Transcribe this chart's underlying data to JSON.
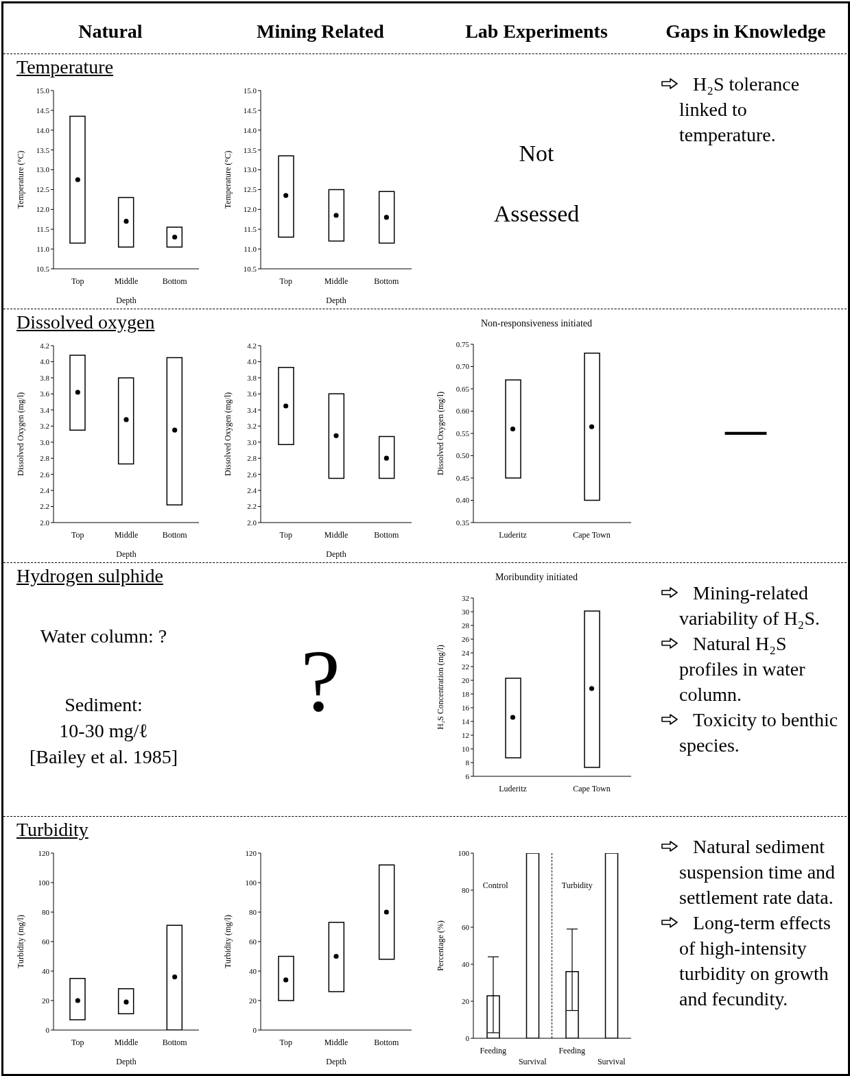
{
  "chart_data": [
    {
      "type": "other",
      "annotations": [
        "Natural",
        "Mining Related",
        "Lab Experiments",
        "Gaps in Knowledge"
      ]
    },
    {
      "type": "bar",
      "title": "Temperature",
      "categories": [
        "Top",
        "Middle",
        "Bottom"
      ],
      "xlabel": "Depth",
      "ylabel": "Temperature (°C)",
      "ylim": [
        10.5,
        15
      ],
      "yticks": [
        10.5,
        {
          "value": 11,
          "label": "11.0"
        },
        11.5,
        {
          "value": 12,
          "label": "12.0"
        },
        12.5,
        {
          "value": 13,
          "label": "13.0"
        },
        13.5,
        {
          "value": 14,
          "label": "14.0"
        },
        14.5,
        {
          "value": 15,
          "label": "15.0"
        }
      ],
      "marker": "circle",
      "series": [
        {
          "type": "bar",
          "color": "#000000",
          "base": [
            11.15,
            11.05,
            11.05
          ],
          "values": [
            3.2,
            1.25,
            0.5
          ]
        },
        {
          "type": "scatter",
          "color": "#000000",
          "x": [
            "Top",
            "Middle",
            "Bottom"
          ],
          "values": [
            12.75,
            11.7,
            11.3
          ]
        }
      ]
    },
    {
      "type": "bar",
      "categories": [
        "Top",
        "Middle",
        "Bottom"
      ],
      "xlabel": "Depth",
      "ylabel": "Temperature (°C)",
      "ylim": [
        10.5,
        15
      ],
      "yticks": [
        10.5,
        {
          "value": 11,
          "label": "11.0"
        },
        11.5,
        {
          "value": 12,
          "label": "12.0"
        },
        12.5,
        {
          "value": 13,
          "label": "13.0"
        },
        13.5,
        {
          "value": 14,
          "label": "14.0"
        },
        14.5,
        {
          "value": 15,
          "label": "15.0"
        }
      ],
      "marker": "circle",
      "series": [
        {
          "type": "bar",
          "color": "#000000",
          "base": [
            11.3,
            11.2,
            11.15
          ],
          "values": [
            2.05,
            1.3,
            1.3
          ]
        },
        {
          "type": "scatter",
          "color": "#000000",
          "x": [
            "Top",
            "Middle",
            "Bottom"
          ],
          "values": [
            12.35,
            11.85,
            11.8
          ]
        }
      ]
    },
    {
      "type": "other",
      "annotations": [
        "Not Assessed"
      ]
    },
    {
      "type": "other",
      "annotations": [
        "H₂S tolerance linked to temperature."
      ]
    },
    {
      "type": "bar",
      "title": "Dissolved oxygen",
      "categories": [
        "Top",
        "Middle",
        "Bottom"
      ],
      "xlabel": "Depth",
      "ylabel": "Dissolved Oxygen (mg/l)",
      "ylim": [
        2,
        4.2
      ],
      "yticks": [
        {
          "value": 2,
          "label": "2.0"
        },
        2.2,
        2.4,
        2.6,
        2.8,
        {
          "value": 3,
          "label": "3.0"
        },
        3.2,
        3.4,
        3.6,
        3.8,
        {
          "value": 4,
          "label": "4.0"
        },
        4.2
      ],
      "marker": "circle",
      "series": [
        {
          "type": "bar",
          "color": "#000000",
          "base": [
            3.15,
            2.73,
            2.22
          ],
          "values": [
            0.93,
            1.07,
            1.83
          ]
        },
        {
          "type": "scatter",
          "color": "#000000",
          "x": [
            "Top",
            "Middle",
            "Bottom"
          ],
          "values": [
            3.62,
            3.28,
            3.15
          ]
        }
      ]
    },
    {
      "type": "bar",
      "categories": [
        "Top",
        "Middle",
        "Bottom"
      ],
      "xlabel": "Depth",
      "ylabel": "Dissolved Oxygen (mg/l)",
      "ylim": [
        2,
        4.2
      ],
      "yticks": [
        {
          "value": 2,
          "label": "2.0"
        },
        2.2,
        2.4,
        2.6,
        2.8,
        {
          "value": 3,
          "label": "3.0"
        },
        3.2,
        3.4,
        3.6,
        3.8,
        {
          "value": 4,
          "label": "4.0"
        },
        4.2
      ],
      "marker": "circle",
      "series": [
        {
          "type": "bar",
          "color": "#000000",
          "base": [
            2.97,
            2.55,
            2.55
          ],
          "values": [
            0.96,
            1.05,
            0.52
          ]
        },
        {
          "type": "scatter",
          "color": "#000000",
          "x": [
            "Top",
            "Middle",
            "Bottom"
          ],
          "values": [
            3.45,
            3.08,
            2.8
          ]
        }
      ]
    },
    {
      "type": "bar",
      "title": "Non-responsiveness initiated",
      "categories": [
        "Luderitz",
        "Cape Town"
      ],
      "ylabel": "Dissolved Oxygen (mg/l)",
      "ylim": [
        0.35,
        0.75
      ],
      "yticks": [
        0.35,
        {
          "value": 0.4,
          "label": "0.40"
        },
        0.45,
        {
          "value": 0.5,
          "label": "0.50"
        },
        0.55,
        {
          "value": 0.6,
          "label": "0.60"
        },
        0.65,
        {
          "value": 0.7,
          "label": "0.70"
        },
        0.75
      ],
      "marker": "circle",
      "series": [
        {
          "type": "bar",
          "color": "#000000",
          "base": [
            0.45,
            0.4
          ],
          "values": [
            0.22,
            0.33
          ]
        },
        {
          "type": "scatter",
          "color": "#000000",
          "x": [
            "Luderitz",
            "Cape Town"
          ],
          "values": [
            0.56,
            0.565
          ]
        }
      ]
    },
    {
      "type": "other",
      "annotations": [
        "—"
      ]
    },
    {
      "type": "other",
      "title": "Hydrogen sulphide",
      "annotations": [
        "Water column: ?",
        "Sediment:",
        "10-30 mg/ℓ",
        "[Bailey et al. 1985]"
      ]
    },
    {
      "type": "other",
      "annotations": [
        "?"
      ]
    },
    {
      "type": "bar",
      "title": "Moribundity initiated",
      "categories": [
        "Luderitz",
        "Cape Town"
      ],
      "ylabel": "H₂S Concentration (mg/l)",
      "ylim": [
        6,
        32
      ],
      "yticks": [
        6,
        8,
        10,
        12,
        14,
        16,
        18,
        20,
        22,
        24,
        26,
        28,
        30,
        32
      ],
      "marker": "circle",
      "series": [
        {
          "type": "bar",
          "color": "#000000",
          "base": [
            8.7,
            7.3
          ],
          "values": [
            11.6,
            22.8
          ]
        },
        {
          "type": "scatter",
          "color": "#000000",
          "x": [
            "Luderitz",
            "Cape Town"
          ],
          "values": [
            14.6,
            18.8
          ]
        }
      ]
    },
    {
      "type": "other",
      "annotations": [
        "Mining-related variability of H₂S.",
        "Natural H₂S profiles in water column.",
        "Toxicity to benthic species."
      ]
    },
    {
      "type": "bar",
      "title": "Turbidity",
      "categories": [
        "Top",
        "Middle",
        "Bottom"
      ],
      "xlabel": "Depth",
      "ylabel": "Turbidity (mg/l)",
      "ylim": [
        0,
        120
      ],
      "yticks": [
        0,
        20,
        40,
        60,
        80,
        100,
        120
      ],
      "marker": "circle",
      "series": [
        {
          "type": "bar",
          "color": "#000000",
          "base": [
            7,
            11,
            0
          ],
          "values": [
            28,
            17,
            71
          ]
        },
        {
          "type": "scatter",
          "color": "#000000",
          "x": [
            "Top",
            "Middle",
            "Bottom"
          ],
          "values": [
            20,
            19,
            36
          ]
        }
      ]
    },
    {
      "type": "bar",
      "categories": [
        "Top",
        "Middle",
        "Bottom"
      ],
      "xlabel": "Depth",
      "ylabel": "Turbidity (mg/l)",
      "ylim": [
        0,
        120
      ],
      "yticks": [
        0,
        20,
        40,
        60,
        80,
        100,
        120
      ],
      "marker": "circle",
      "series": [
        {
          "type": "bar",
          "color": "#000000",
          "base": [
            20,
            26,
            48
          ],
          "values": [
            30,
            47,
            64
          ]
        },
        {
          "type": "scatter",
          "color": "#000000",
          "x": [
            "Top",
            "Middle",
            "Bottom"
          ],
          "values": [
            34,
            50,
            80
          ]
        }
      ]
    },
    {
      "type": "bar",
      "categories": [
        "Feeding",
        "Survival",
        "Feeding",
        "Survival"
      ],
      "ylabel": "Percentage (%)",
      "ylim": [
        0,
        100
      ],
      "yticks": [
        0,
        20,
        40,
        60,
        80,
        100
      ],
      "annotations": [
        "Control",
        "Turbidity"
      ],
      "series": [
        {
          "type": "bar",
          "color": "#000000",
          "values": [
            23,
            100,
            36,
            100
          ],
          "errors": [
            [
              3,
              44
            ],
            null,
            [
              15,
              59
            ],
            null
          ]
        }
      ]
    },
    {
      "type": "other",
      "annotations": [
        "Natural sediment suspension time and settlement rate data.",
        "Long-term effects of high-intensity turbidity on growth and fecundity."
      ]
    }
  ]
}
